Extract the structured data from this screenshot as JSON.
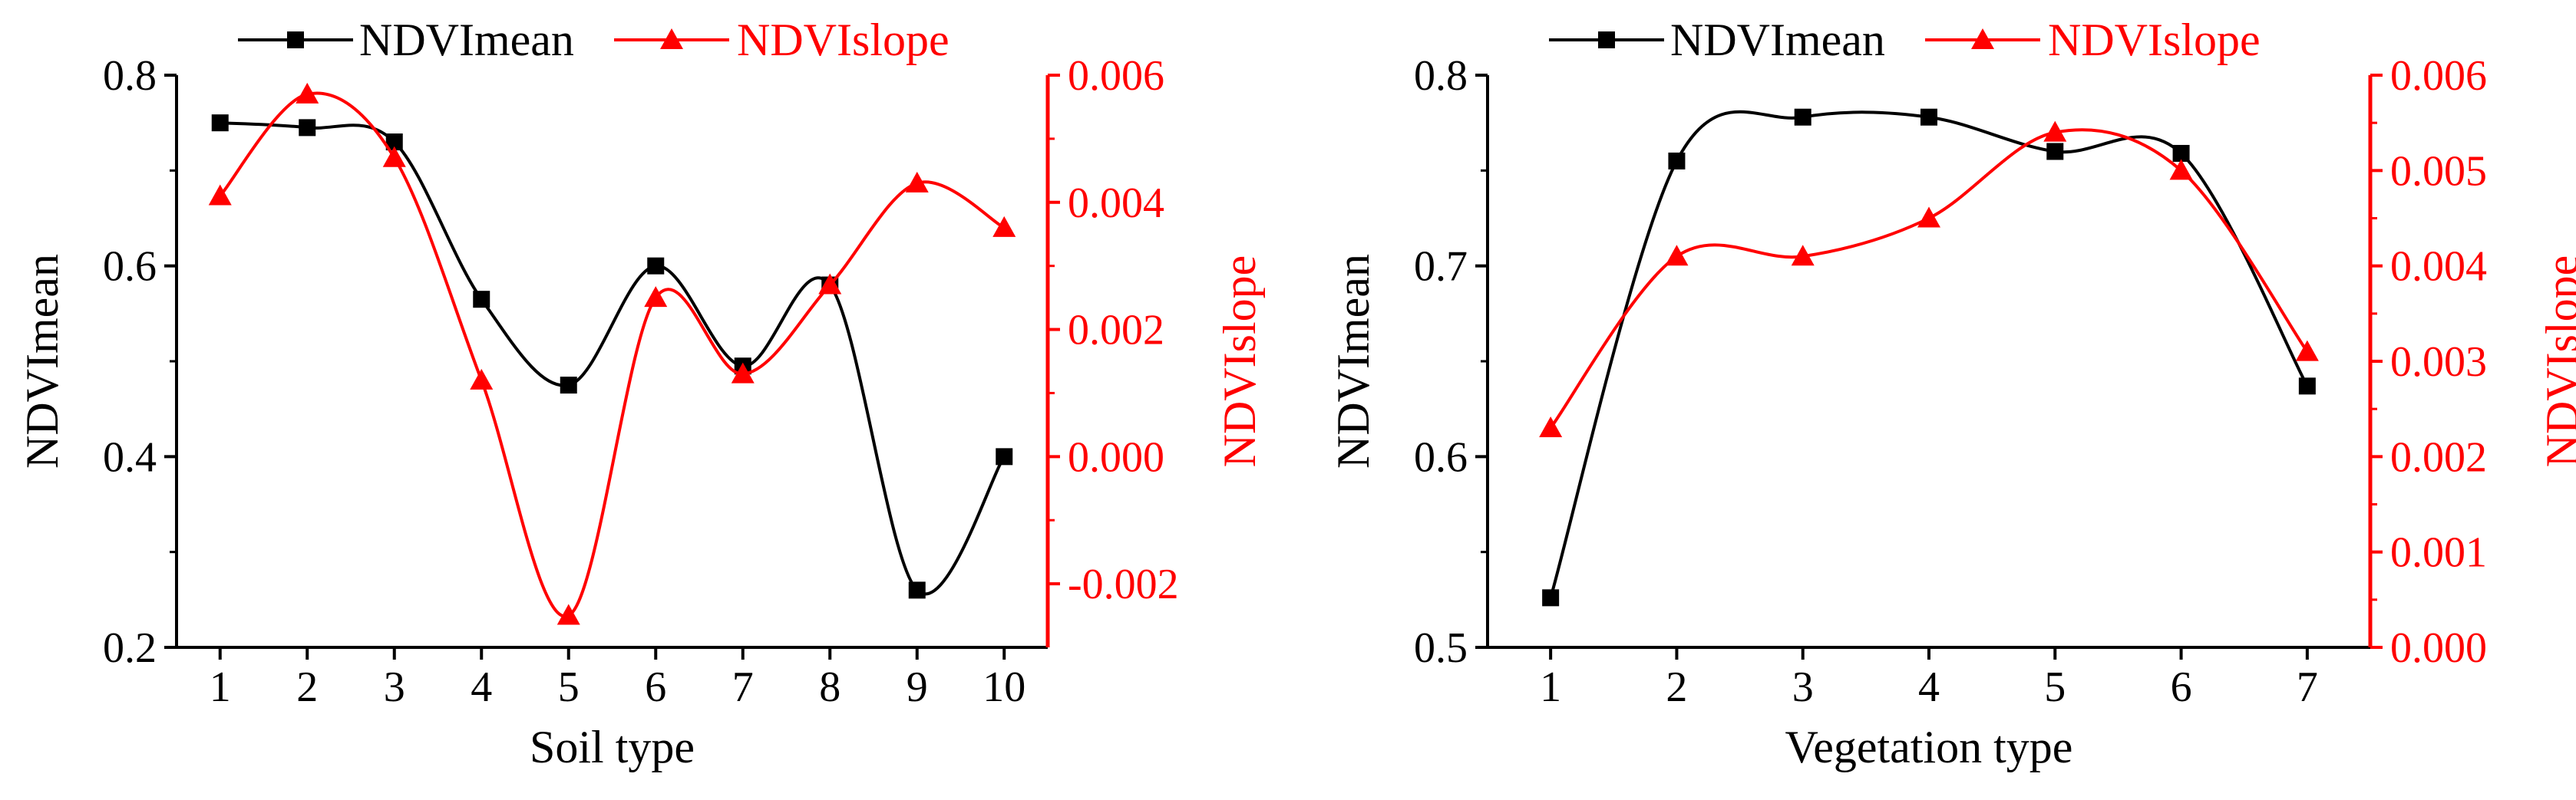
{
  "chart_data": [
    {
      "type": "line",
      "xlabel": "Soil type",
      "ylabel": "NDVImean",
      "y2label": "NDVIslope",
      "categories": [
        "1",
        "2",
        "3",
        "4",
        "5",
        "6",
        "7",
        "8",
        "9",
        "10"
      ],
      "xlim": [
        0.5,
        10.5
      ],
      "ylim": [
        0.2,
        0.8
      ],
      "y2lim": [
        -0.003,
        0.006
      ],
      "yticks": [
        "0.2",
        "0.4",
        "0.6",
        "0.8"
      ],
      "y2ticks": [
        "-0.002",
        "0.000",
        "0.002",
        "0.004",
        "0.006"
      ],
      "series": [
        {
          "name": "NDVImean",
          "axis": "left",
          "color": "#000000",
          "marker": "square",
          "values": [
            0.75,
            0.745,
            0.73,
            0.565,
            0.475,
            0.6,
            0.495,
            0.58,
            0.26,
            0.4
          ]
        },
        {
          "name": "NDVIslope",
          "axis": "right",
          "color": "#ff0000",
          "marker": "triangle",
          "values": [
            0.0041,
            0.0057,
            0.0047,
            0.0012,
            -0.0025,
            0.0025,
            0.0013,
            0.0027,
            0.0043,
            0.0036
          ]
        }
      ],
      "legend": {
        "placement": "top-center",
        "entries": [
          "NDVImean",
          "NDVIslope"
        ]
      }
    },
    {
      "type": "line",
      "xlabel": "Vegetation type",
      "ylabel": "NDVImean",
      "y2label": "NDVIslope",
      "categories": [
        "1",
        "2",
        "3",
        "4",
        "5",
        "6",
        "7"
      ],
      "xlim": [
        0.5,
        7.5
      ],
      "ylim": [
        0.5,
        0.8
      ],
      "y2lim": [
        0.0,
        0.006
      ],
      "yticks": [
        "0.5",
        "0.6",
        "0.7",
        "0.8"
      ],
      "y2ticks": [
        "0.000",
        "0.001",
        "0.002",
        "0.003",
        "0.004",
        "0.005",
        "0.006"
      ],
      "series": [
        {
          "name": "NDVImean",
          "axis": "left",
          "color": "#000000",
          "marker": "square",
          "values": [
            0.526,
            0.755,
            0.778,
            0.778,
            0.76,
            0.759,
            0.637
          ]
        },
        {
          "name": "NDVIslope",
          "axis": "right",
          "color": "#ff0000",
          "marker": "triangle",
          "values": [
            0.0023,
            0.0041,
            0.0041,
            0.0045,
            0.0054,
            0.005,
            0.0031
          ]
        }
      ],
      "legend": {
        "placement": "top-center",
        "entries": [
          "NDVImean",
          "NDVIslope"
        ]
      }
    }
  ]
}
